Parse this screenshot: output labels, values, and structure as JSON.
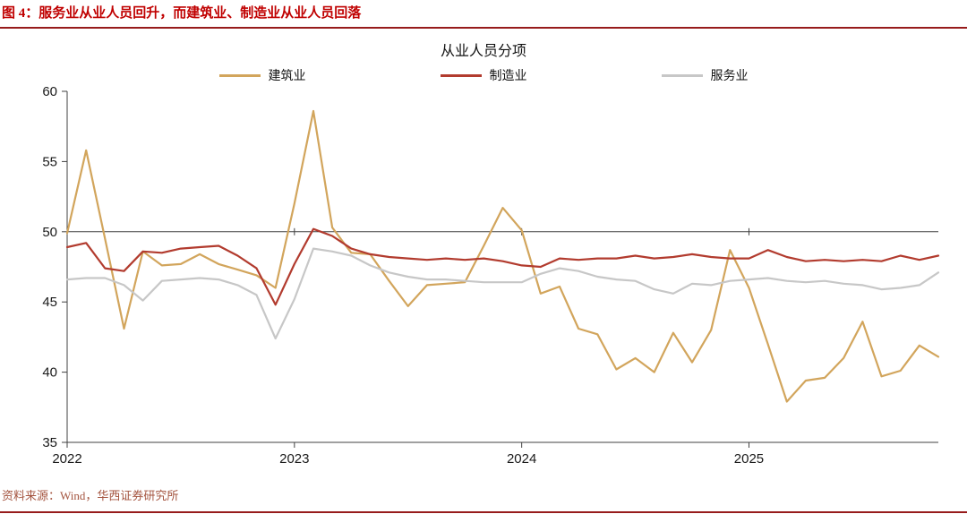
{
  "figure": {
    "caption": "图 4：服务业从业人员回升，而建筑业、制造业从业人员回落"
  },
  "chart_data": {
    "type": "line",
    "title": "从业人员分项",
    "x_unit": "month",
    "x_range": [
      "2022-01",
      "2025-11"
    ],
    "x_tick_labels": [
      "2022",
      "2023",
      "2024",
      "2025"
    ],
    "x_tick_month_index": [
      0,
      12,
      24,
      36
    ],
    "ylim": [
      35,
      60
    ],
    "yticks": [
      35,
      40,
      45,
      50,
      55,
      60
    ],
    "reference_line_y": 50,
    "grid": false,
    "legend_position": "top",
    "series": [
      {
        "id": "construction",
        "name": "建筑业",
        "color": "#D2A55C",
        "values": [
          49.9,
          55.8,
          49.5,
          43.1,
          48.6,
          47.6,
          47.7,
          48.4,
          47.7,
          47.3,
          46.9,
          46.0,
          52.0,
          58.6,
          50.3,
          48.5,
          48.4,
          46.5,
          44.7,
          46.2,
          46.3,
          46.4,
          49.0,
          51.7,
          50.1,
          45.6,
          46.1,
          43.1,
          42.7,
          40.2,
          41.0,
          40.0,
          42.8,
          40.7,
          43.0,
          48.7,
          46.0,
          42.0,
          37.9,
          39.4,
          39.6,
          41.0,
          43.6,
          39.7,
          40.1,
          41.9,
          41.1
        ]
      },
      {
        "id": "manufacturing",
        "name": "制造业",
        "color": "#B23B2E",
        "values": [
          48.9,
          49.2,
          47.4,
          47.2,
          48.6,
          48.5,
          48.8,
          48.9,
          49.0,
          48.3,
          47.4,
          44.8,
          47.7,
          50.2,
          49.7,
          48.8,
          48.4,
          48.2,
          48.1,
          48.0,
          48.1,
          48.0,
          48.1,
          47.9,
          47.6,
          47.5,
          48.1,
          48.0,
          48.1,
          48.1,
          48.3,
          48.1,
          48.2,
          48.4,
          48.2,
          48.1,
          48.1,
          48.7,
          48.2,
          47.9,
          48.0,
          47.9,
          48.0,
          47.9,
          48.3,
          48.0,
          48.3
        ]
      },
      {
        "id": "services",
        "name": "服务业",
        "color": "#C7C7C7",
        "values": [
          46.6,
          46.7,
          46.7,
          46.2,
          45.1,
          46.5,
          46.6,
          46.7,
          46.6,
          46.2,
          45.5,
          42.4,
          45.2,
          48.8,
          48.6,
          48.3,
          47.6,
          47.1,
          46.8,
          46.6,
          46.6,
          46.5,
          46.4,
          46.4,
          46.4,
          47.0,
          47.4,
          47.2,
          46.8,
          46.6,
          46.5,
          45.9,
          45.6,
          46.3,
          46.2,
          46.5,
          46.6,
          46.7,
          46.5,
          46.4,
          46.5,
          46.3,
          46.2,
          45.9,
          46.0,
          46.2,
          47.1
        ]
      }
    ]
  },
  "footer": {
    "source": "资料来源：Wind，华西证券研究所"
  },
  "colors": {
    "caption_red": "#C00000",
    "divider_red": "#971B1B",
    "source_text": "#A4543F",
    "axis": "#404040"
  }
}
